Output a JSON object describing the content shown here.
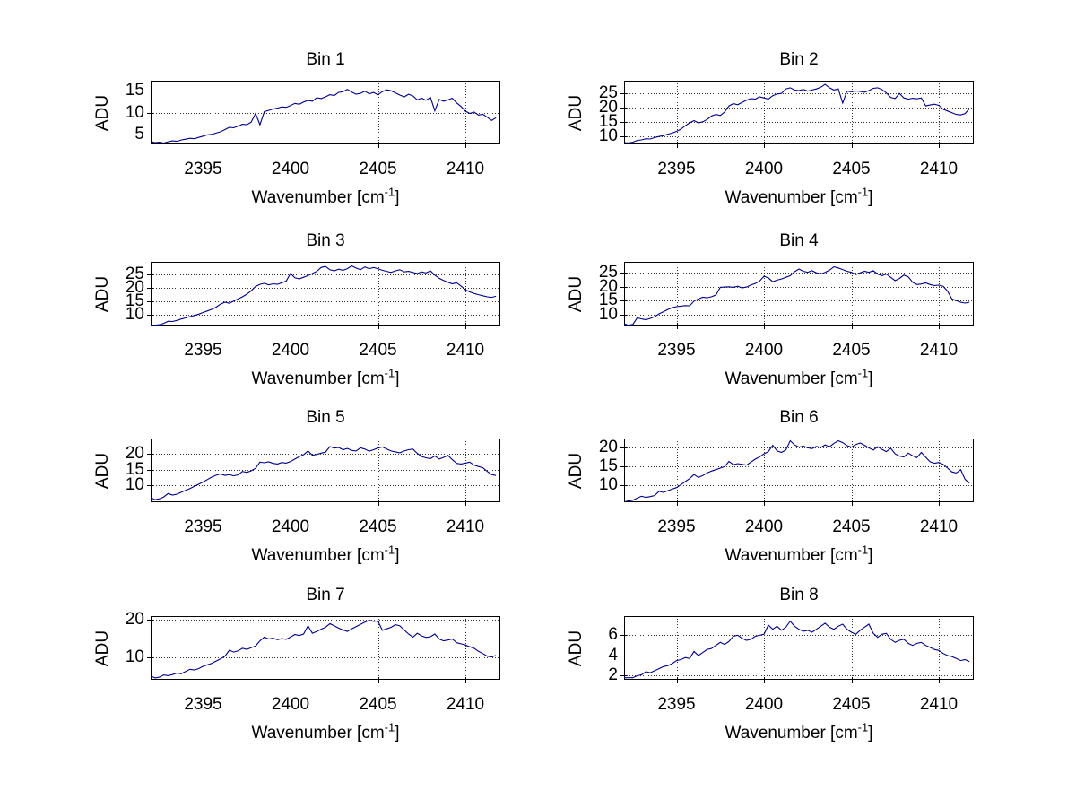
{
  "figure": {
    "background": "#ffffff",
    "line_color": "#000084",
    "grid_color": "#333333",
    "axis_color": "#000000",
    "ylabel": "ADU",
    "xlabel_parts": [
      "Wavenumber [cm",
      "-1",
      "]"
    ]
  },
  "chart_data": [
    {
      "type": "line",
      "title": "Bin 1",
      "xlabel": "Wavenumber [cm-1]",
      "ylabel": "ADU",
      "xlim": [
        2392,
        2412
      ],
      "ylim": [
        2.7,
        17.3
      ],
      "xticks": [
        2395,
        2400,
        2405,
        2410
      ],
      "yticks": [
        5,
        10,
        15
      ],
      "grid": true,
      "x_start": 2392,
      "x_step": 0.25,
      "values": [
        3.4,
        3.1,
        3.2,
        3.0,
        3.3,
        3.5,
        3.4,
        3.7,
        3.9,
        4.1,
        4.0,
        4.3,
        4.6,
        4.9,
        5.0,
        5.3,
        5.6,
        6.1,
        6.6,
        6.5,
        6.9,
        7.3,
        7.2,
        7.8,
        9.8,
        7.2,
        10.2,
        10.5,
        10.8,
        11.0,
        11.3,
        11.2,
        11.6,
        12.1,
        11.9,
        12.4,
        12.8,
        12.6,
        13.4,
        13.2,
        13.6,
        14.1,
        13.9,
        14.6,
        14.8,
        15.3,
        14.7,
        14.2,
        14.4,
        14.9,
        14.3,
        14.6,
        14.1,
        14.8,
        15.2,
        15.0,
        14.5,
        14.0,
        13.6,
        14.2,
        13.8,
        12.9,
        13.3,
        12.8,
        13.5,
        10.4,
        13.0,
        12.6,
        12.9,
        13.3,
        12.2,
        11.4,
        10.3,
        9.8,
        10.1,
        9.4,
        9.6,
        8.9,
        8.2,
        8.8
      ]
    },
    {
      "type": "line",
      "title": "Bin 2",
      "xlabel": "Wavenumber [cm-1]",
      "ylabel": "ADU",
      "xlim": [
        2392,
        2412
      ],
      "ylim": [
        7,
        29.5
      ],
      "xticks": [
        2395,
        2400,
        2405,
        2410
      ],
      "yticks": [
        10,
        15,
        20,
        25
      ],
      "grid": true,
      "x_start": 2392,
      "x_step": 0.25,
      "values": [
        7.6,
        7.5,
        7.8,
        8.4,
        8.6,
        9.0,
        8.9,
        9.4,
        9.8,
        10.1,
        10.6,
        11.0,
        11.6,
        12.4,
        13.6,
        14.6,
        15.4,
        14.6,
        15.0,
        15.8,
        17.0,
        17.6,
        17.2,
        18.4,
        20.6,
        21.4,
        21.0,
        21.8,
        22.6,
        23.2,
        23.0,
        23.8,
        23.4,
        23.0,
        24.2,
        24.8,
        25.0,
        26.6,
        27.0,
        26.2,
        26.0,
        26.4,
        25.8,
        26.2,
        26.6,
        27.2,
        28.2,
        27.0,
        26.2,
        26.6,
        21.6,
        25.8,
        25.6,
        25.9,
        25.7,
        25.4,
        26.0,
        26.8,
        27.0,
        26.4,
        25.2,
        23.6,
        23.2,
        25.0,
        23.4,
        23.0,
        23.3,
        23.1,
        23.4,
        20.6,
        20.9,
        21.2,
        20.8,
        19.4,
        18.8,
        18.2,
        17.6,
        17.4,
        17.9,
        19.6
      ]
    },
    {
      "type": "line",
      "title": "Bin 3",
      "xlabel": "Wavenumber [cm-1]",
      "ylabel": "ADU",
      "xlim": [
        2392,
        2412
      ],
      "ylim": [
        6,
        29.5
      ],
      "xticks": [
        2395,
        2400,
        2405,
        2410
      ],
      "yticks": [
        10,
        15,
        20,
        25
      ],
      "grid": true,
      "x_start": 2392,
      "x_step": 0.25,
      "values": [
        6.2,
        6.1,
        6.3,
        6.8,
        7.6,
        7.5,
        7.9,
        8.4,
        8.8,
        9.3,
        9.7,
        10.2,
        10.8,
        11.4,
        12.0,
        12.8,
        13.9,
        14.6,
        14.2,
        15.0,
        15.8,
        16.6,
        17.6,
        18.8,
        20.4,
        21.2,
        21.6,
        21.0,
        21.4,
        21.2,
        21.8,
        22.4,
        25.2,
        23.6,
        23.2,
        23.8,
        24.4,
        25.2,
        26.0,
        27.4,
        27.8,
        26.6,
        26.2,
        26.8,
        26.4,
        27.0,
        28.0,
        27.2,
        26.6,
        27.6,
        27.0,
        27.4,
        27.0,
        26.4,
        26.0,
        25.6,
        26.2,
        26.6,
        25.8,
        26.0,
        25.6,
        25.2,
        25.8,
        25.4,
        26.2,
        24.6,
        23.4,
        22.6,
        22.0,
        21.4,
        21.8,
        20.6,
        19.2,
        18.4,
        17.8,
        17.4,
        17.0,
        16.6,
        16.4,
        16.8
      ]
    },
    {
      "type": "line",
      "title": "Bin 4",
      "xlabel": "Wavenumber [cm-1]",
      "ylabel": "ADU",
      "xlim": [
        2392,
        2412
      ],
      "ylim": [
        6,
        29
      ],
      "xticks": [
        2395,
        2400,
        2405,
        2410
      ],
      "yticks": [
        10,
        15,
        20,
        25
      ],
      "grid": true,
      "x_start": 2392,
      "x_step": 0.25,
      "values": [
        6.6,
        6.1,
        6.4,
        8.8,
        8.4,
        8.1,
        8.6,
        9.2,
        10.2,
        11.0,
        11.8,
        12.4,
        12.8,
        13.0,
        13.2,
        13.1,
        14.8,
        15.6,
        16.2,
        16.0,
        16.4,
        17.0,
        19.8,
        19.9,
        20.0,
        19.8,
        20.2,
        19.6,
        19.9,
        20.6,
        21.2,
        22.0,
        23.8,
        23.2,
        21.8,
        22.4,
        22.8,
        23.4,
        24.0,
        25.4,
        26.4,
        25.6,
        25.2,
        25.8,
        25.0,
        24.6,
        25.2,
        26.0,
        27.2,
        26.8,
        26.2,
        25.6,
        25.2,
        24.4,
        25.0,
        25.6,
        25.2,
        25.8,
        24.6,
        24.0,
        24.6,
        23.4,
        22.2,
        23.0,
        24.2,
        23.6,
        21.6,
        20.8,
        21.0,
        21.4,
        20.8,
        20.4,
        20.6,
        20.2,
        18.4,
        15.6,
        15.0,
        14.4,
        14.1,
        14.4
      ]
    },
    {
      "type": "line",
      "title": "Bin 5",
      "xlabel": "Wavenumber [cm-1]",
      "ylabel": "ADU",
      "xlim": [
        2392,
        2412
      ],
      "ylim": [
        4.5,
        25
      ],
      "xticks": [
        2395,
        2400,
        2405,
        2410
      ],
      "yticks": [
        10,
        15,
        20
      ],
      "grid": true,
      "x_start": 2392,
      "x_step": 0.25,
      "values": [
        6.0,
        5.3,
        5.6,
        6.2,
        7.3,
        6.8,
        7.1,
        7.7,
        8.3,
        8.9,
        9.6,
        10.3,
        11.0,
        11.8,
        12.6,
        13.2,
        13.6,
        13.1,
        13.4,
        13.0,
        13.3,
        14.4,
        14.1,
        14.6,
        15.4,
        17.4,
        17.2,
        17.5,
        17.0,
        16.8,
        17.3,
        17.1,
        17.6,
        18.4,
        19.2,
        19.8,
        21.0,
        19.6,
        19.9,
        20.3,
        20.6,
        22.4,
        21.9,
        22.1,
        21.4,
        21.8,
        21.2,
        21.0,
        22.0,
        21.6,
        20.9,
        21.4,
        21.9,
        22.3,
        21.6,
        21.0,
        20.7,
        20.4,
        21.0,
        21.4,
        21.6,
        20.2,
        19.2,
        18.8,
        18.5,
        19.4,
        18.4,
        18.9,
        19.6,
        18.2,
        17.0,
        16.8,
        17.1,
        17.4,
        16.4,
        16.0,
        15.6,
        14.4,
        13.4,
        13.1
      ]
    },
    {
      "type": "line",
      "title": "Bin 6",
      "xlabel": "Wavenumber [cm-1]",
      "ylabel": "ADU",
      "xlim": [
        2392,
        2412
      ],
      "ylim": [
        5.5,
        22.5
      ],
      "xticks": [
        2395,
        2400,
        2405,
        2410
      ],
      "yticks": [
        10,
        15,
        20
      ],
      "grid": true,
      "x_start": 2392,
      "x_step": 0.25,
      "values": [
        6.2,
        5.8,
        6.0,
        6.6,
        7.1,
        6.8,
        7.0,
        7.3,
        8.4,
        8.1,
        8.6,
        9.0,
        9.4,
        10.2,
        11.0,
        11.8,
        12.9,
        12.1,
        12.6,
        13.3,
        13.8,
        14.2,
        14.6,
        15.0,
        16.4,
        15.5,
        15.8,
        15.6,
        15.4,
        16.2,
        17.0,
        17.6,
        18.4,
        19.0,
        20.7,
        19.2,
        18.8,
        19.4,
        21.9,
        20.8,
        20.2,
        20.5,
        20.0,
        19.8,
        20.4,
        20.1,
        20.8,
        20.3,
        21.2,
        21.9,
        21.4,
        20.6,
        20.2,
        20.9,
        21.3,
        20.7,
        20.0,
        19.4,
        20.3,
        19.6,
        19.0,
        19.9,
        18.4,
        17.8,
        17.6,
        18.6,
        17.9,
        17.4,
        18.8,
        17.5,
        16.3,
        15.9,
        16.1,
        15.6,
        14.6,
        13.6,
        13.3,
        14.2,
        11.6,
        10.6
      ]
    },
    {
      "type": "line",
      "title": "Bin 7",
      "xlabel": "Wavenumber [cm-1]",
      "ylabel": "ADU",
      "xlim": [
        2392,
        2412
      ],
      "ylim": [
        4,
        21
      ],
      "xticks": [
        2395,
        2400,
        2405,
        2410
      ],
      "yticks": [
        10,
        20
      ],
      "grid": true,
      "x_start": 2392,
      "x_step": 0.25,
      "values": [
        5.0,
        4.5,
        4.7,
        5.3,
        5.1,
        5.4,
        5.8,
        5.6,
        6.2,
        6.8,
        6.6,
        7.0,
        7.6,
        8.0,
        8.4,
        9.0,
        9.6,
        10.3,
        11.9,
        11.4,
        11.7,
        12.4,
        12.1,
        12.6,
        13.0,
        14.4,
        15.4,
        14.9,
        15.1,
        14.7,
        15.0,
        14.8,
        15.4,
        16.1,
        15.8,
        16.2,
        18.4,
        16.4,
        16.9,
        17.5,
        18.0,
        19.0,
        18.4,
        17.8,
        17.3,
        16.9,
        17.6,
        18.2,
        18.8,
        19.4,
        19.9,
        19.6,
        19.7,
        17.2,
        17.6,
        18.0,
        18.7,
        18.4,
        17.3,
        16.2,
        15.4,
        16.4,
        15.7,
        15.3,
        15.5,
        16.2,
        14.9,
        14.4,
        14.6,
        14.9,
        13.9,
        13.6,
        13.3,
        12.8,
        12.4,
        11.6,
        11.0,
        10.3,
        10.1,
        10.5
      ]
    },
    {
      "type": "line",
      "title": "Bin 8",
      "xlabel": "Wavenumber [cm-1]",
      "ylabel": "ADU",
      "xlim": [
        2392,
        2412
      ],
      "ylim": [
        1.6,
        7.9
      ],
      "xticks": [
        2395,
        2400,
        2405,
        2410
      ],
      "yticks": [
        2,
        4,
        6
      ],
      "grid": true,
      "x_start": 2392,
      "x_step": 0.25,
      "values": [
        1.8,
        1.8,
        1.8,
        2.0,
        2.1,
        2.4,
        2.3,
        2.5,
        2.7,
        2.9,
        3.0,
        3.2,
        3.5,
        3.6,
        3.8,
        3.7,
        4.4,
        4.0,
        4.3,
        4.6,
        4.7,
        5.0,
        5.3,
        5.1,
        5.4,
        5.9,
        6.0,
        5.7,
        5.5,
        5.6,
        5.9,
        6.0,
        6.1,
        7.0,
        6.6,
        6.9,
        6.5,
        6.8,
        7.4,
        6.9,
        6.6,
        6.4,
        6.5,
        6.3,
        6.6,
        6.9,
        7.2,
        6.8,
        6.6,
        6.9,
        7.1,
        6.6,
        6.3,
        6.1,
        6.5,
        6.8,
        7.1,
        6.2,
        5.8,
        6.1,
        6.2,
        5.6,
        5.3,
        5.5,
        5.6,
        5.2,
        5.0,
        5.2,
        5.3,
        5.0,
        4.8,
        4.6,
        4.5,
        4.2,
        4.0,
        3.9,
        3.7,
        3.5,
        3.6,
        3.4
      ]
    }
  ]
}
